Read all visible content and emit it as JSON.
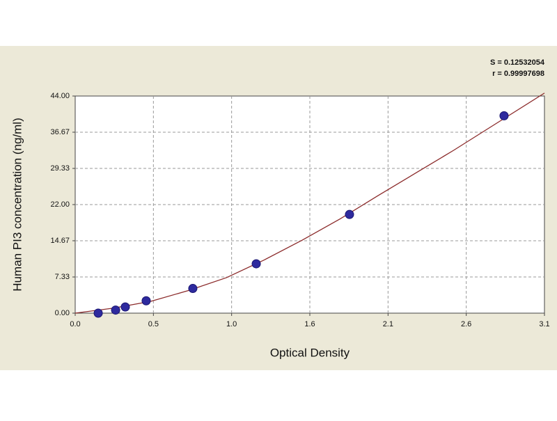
{
  "chart_data": {
    "type": "scatter",
    "annotations": [
      "S = 0.12532054",
      "r = 0.99997698"
    ],
    "x_label": "Optical Density",
    "y_label": "Human PI3 concentration (ng/ml)",
    "xlim": [
      0,
      3.1
    ],
    "ylim": [
      0,
      44
    ],
    "xticks": [
      {
        "value": 0,
        "label": "0.0"
      },
      {
        "value": 0.5167,
        "label": "0.5"
      },
      {
        "value": 1.0333,
        "label": "1.0"
      },
      {
        "value": 1.55,
        "label": "1.6"
      },
      {
        "value": 2.0667,
        "label": "2.1"
      },
      {
        "value": 2.5833,
        "label": "2.6"
      },
      3.1
    ],
    "yticks": [
      {
        "value": 0,
        "label": "0.00"
      },
      7.33,
      14.67,
      {
        "value": 22,
        "label": "22.00"
      },
      29.33,
      36.67,
      {
        "value": 44,
        "label": "44.00"
      }
    ],
    "grid": true,
    "series": [
      {
        "color": "#2e2a9e",
        "x": [
          0.152,
          0.267,
          0.331,
          0.469,
          0.777,
          1.196,
          1.812,
          2.833
        ],
        "values": [
          0,
          0.625,
          1.25,
          2.5,
          5,
          10,
          20,
          40
        ]
      },
      {
        "type": "line",
        "color": "#8b2a2a",
        "x": [
          0,
          0.25,
          0.5,
          0.75,
          1,
          1.25,
          1.5,
          1.75,
          2,
          2.25,
          2.5,
          2.8,
          3.1
        ],
        "values": [
          0,
          1.0,
          2.4,
          4.6,
          7.2,
          10.8,
          14.8,
          19.1,
          23.8,
          28.4,
          33,
          38.8,
          44.6
        ]
      }
    ]
  }
}
